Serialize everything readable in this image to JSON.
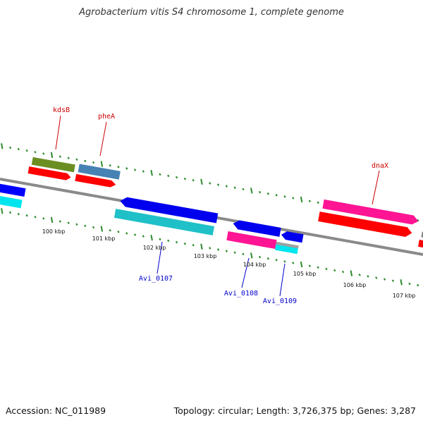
{
  "title": "Agrobacterium vitis S4 chromosome 1, complete genome",
  "footer": {
    "accession": "Accession: NC_011989",
    "stats": "Topology: circular; Length: 3,726,375 bp; Genes: 3,287"
  },
  "colors": {
    "backbone": "#808080",
    "ticks": "#2e8b2e",
    "label_forward": "#cc0000",
    "label_reverse": "#0000cc"
  },
  "scale_labels": [
    {
      "kbp": 100,
      "text": "100 kbp"
    },
    {
      "kbp": 101,
      "text": "101 kbp"
    },
    {
      "kbp": 102,
      "text": "102 kbp"
    },
    {
      "kbp": 103,
      "text": "103 kbp"
    },
    {
      "kbp": 104,
      "text": "104 kbp"
    },
    {
      "kbp": 105,
      "text": "105 kbp"
    },
    {
      "kbp": 106,
      "text": "106 kbp"
    },
    {
      "kbp": 107,
      "text": "107 kbp"
    }
  ],
  "gene_labels": [
    {
      "id": "kdsB",
      "text": "kdsB",
      "strand": "forward"
    },
    {
      "id": "pheA",
      "text": "pheA",
      "strand": "forward"
    },
    {
      "id": "dnaX",
      "text": "dnaX",
      "strand": "forward"
    },
    {
      "id": "Avi_0107",
      "text": "Avi_0107",
      "strand": "reverse"
    },
    {
      "id": "Avi_0108",
      "text": "Avi_0108",
      "strand": "reverse"
    },
    {
      "id": "Avi_0109",
      "text": "Avi_0109",
      "strand": "reverse"
    }
  ]
}
